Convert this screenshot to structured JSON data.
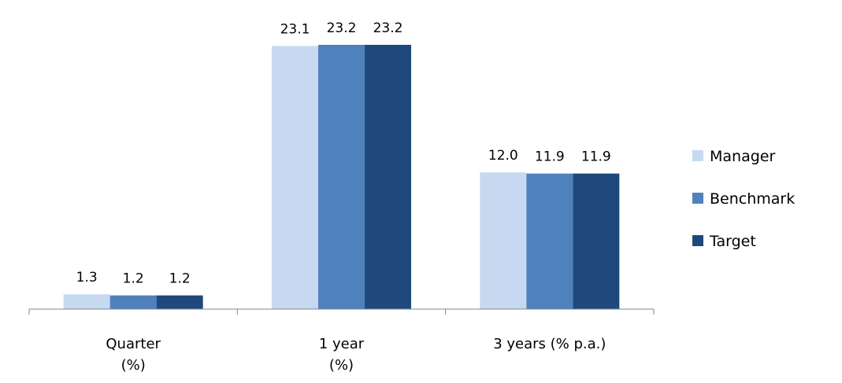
{
  "chart_data": {
    "type": "bar",
    "categories": [
      [
        "Quarter",
        "(%)"
      ],
      [
        "1 year",
        "(%)"
      ],
      [
        "3 years (% p.a.)"
      ]
    ],
    "series": [
      {
        "name": "Manager",
        "values": [
          1.3,
          23.1,
          12.0
        ],
        "labels": [
          "1.3",
          "23.1",
          "12.0"
        ],
        "color": "#c6d9f1"
      },
      {
        "name": "Benchmark",
        "values": [
          1.2,
          23.2,
          11.9
        ],
        "labels": [
          "1.2",
          "23.2",
          "11.9"
        ],
        "color": "#4f81bd"
      },
      {
        "name": "Target",
        "values": [
          1.2,
          23.2,
          11.9
        ],
        "labels": [
          "1.2",
          "23.2",
          "11.9"
        ],
        "color": "#1f497d"
      }
    ],
    "ylim": [
      0,
      23.2
    ],
    "grid": false,
    "legend_position": "right",
    "axis_color": "#868686"
  }
}
